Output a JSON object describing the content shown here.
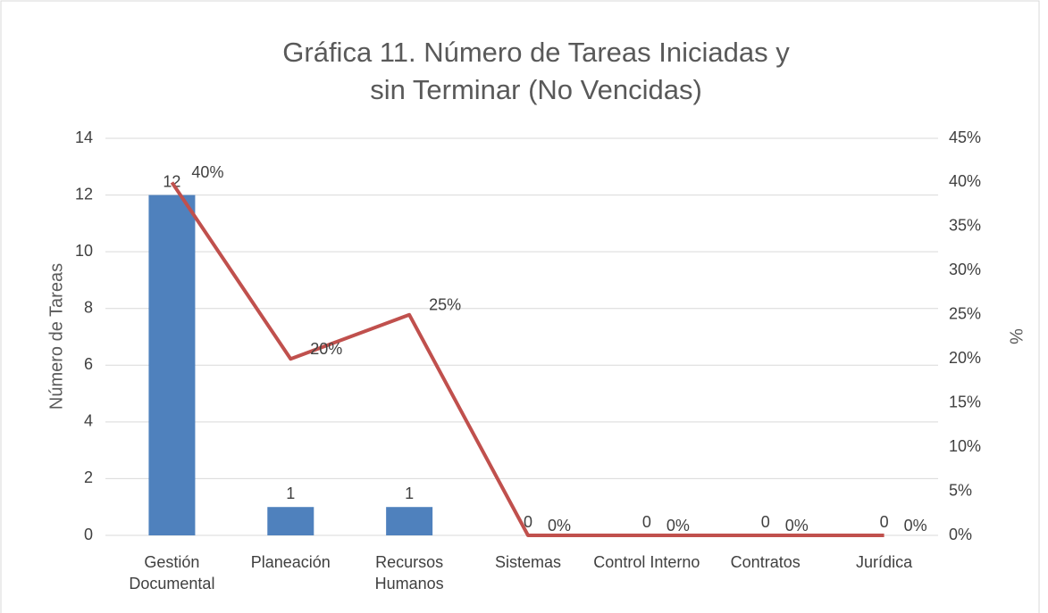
{
  "chart_data": {
    "type": "bar",
    "title": "Gráfica 11. Número de Tareas Iniciadas y sin Terminar (No Vencidas)",
    "ylabel": "Número de Tareas",
    "y2label": "%",
    "categories": [
      "Gestión Documental",
      "Planeación",
      "Recursos Humanos",
      "Sistemas",
      "Control Interno",
      "Contratos",
      "Jurídica"
    ],
    "series": [
      {
        "type": "bar",
        "color": "#4f81bd",
        "values": [
          12,
          1,
          1,
          0,
          0,
          0,
          0
        ]
      },
      {
        "type": "line",
        "axis": "y2",
        "color": "#c0504d",
        "values": [
          40,
          20,
          25,
          0,
          0,
          0,
          0
        ],
        "value_labels": [
          "40%",
          "20%",
          "25%",
          "0%",
          "0%",
          "0%",
          "0%"
        ]
      }
    ],
    "ylim": [
      0,
      14
    ],
    "yticks": [
      0,
      2,
      4,
      6,
      8,
      10,
      12,
      14
    ],
    "y2lim": [
      0,
      45
    ],
    "y2ticks": [
      {
        "value": 0,
        "label": "0%"
      },
      {
        "value": 5,
        "label": "5%"
      },
      {
        "value": 10,
        "label": "10%"
      },
      {
        "value": 15,
        "label": "15%"
      },
      {
        "value": 20,
        "label": "20%"
      },
      {
        "value": 25,
        "label": "25%"
      },
      {
        "value": 30,
        "label": "30%"
      },
      {
        "value": 35,
        "label": "35%"
      },
      {
        "value": 40,
        "label": "40%"
      },
      {
        "value": 45,
        "label": "45%"
      }
    ],
    "grid": true
  }
}
